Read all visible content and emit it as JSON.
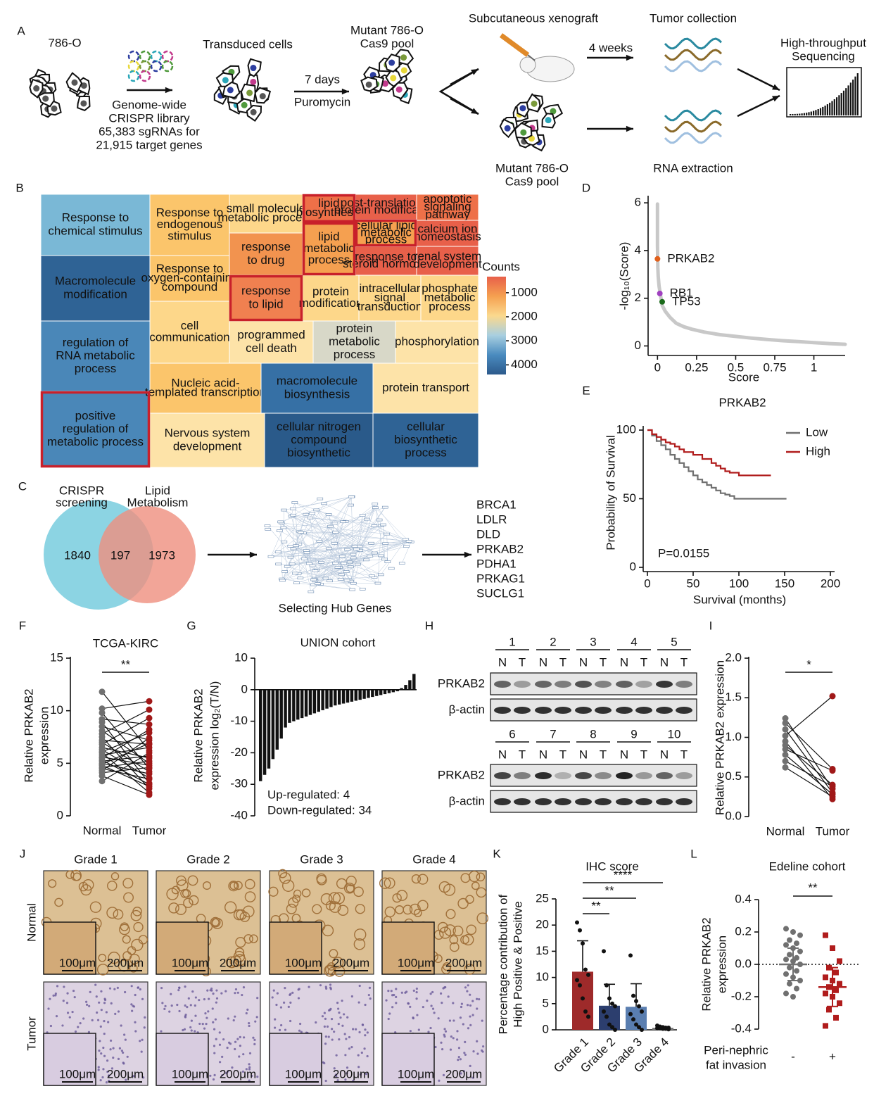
{
  "panel_labels": [
    "A",
    "B",
    "C",
    "D",
    "E",
    "F",
    "G",
    "H",
    "I",
    "J",
    "K",
    "L"
  ],
  "panel_a": {
    "cells_label": "786-O",
    "library": [
      "Genome-wide",
      "CRISPR library",
      "65,383 sgRNAs for",
      "21,915 target genes"
    ],
    "transduced": "Transduced cells",
    "days": "7 days",
    "drug": "Puromycin",
    "pool_top": [
      "Mutant 786-O",
      "Cas9 pool"
    ],
    "xenograft": "Subcutaneous xenograft",
    "weeks": "4 weeks",
    "tumor": "Tumor collection",
    "sequencing": [
      "High-throughput",
      "Sequencing"
    ],
    "pool_bottom": [
      "Mutant 786-O",
      "Cas9 pool"
    ],
    "rna": "RNA extraction"
  },
  "panel_b": {
    "highlight_color": "#c8202a",
    "tiles": [
      {
        "label": [
          "Response to",
          "chemical stimulus"
        ],
        "color": "#7ab8d6"
      },
      {
        "label": [
          "Macromolecule",
          "modification"
        ],
        "color": "#2f6395"
      },
      {
        "label": [
          "regulation of",
          "RNA metabolic",
          "process"
        ],
        "color": "#4a87b8"
      },
      {
        "label": [
          "positive",
          "regulation of",
          "metabolic process"
        ],
        "color": "#4a87b8",
        "highlight": true
      },
      {
        "label": [
          "Response to",
          "endogenous",
          "stimulus"
        ],
        "color": "#fbc56b"
      },
      {
        "label": [
          "Response to",
          "oxygen-containing",
          "compound"
        ],
        "color": "#fbc56b"
      },
      {
        "label": [
          "cell",
          "communication"
        ],
        "color": "#fdd78a"
      },
      {
        "label": [
          "Nucleic acid-",
          "templated transcription"
        ],
        "color": "#fbc56b"
      },
      {
        "label": [
          "Nervous system",
          "development"
        ],
        "color": "#fde3a8"
      },
      {
        "label": [
          "small molecule",
          "metabolic process"
        ],
        "color": "#fdd78a"
      },
      {
        "label": [
          "response",
          "to drug"
        ],
        "color": "#f2934f"
      },
      {
        "label": [
          "response",
          "to lipid"
        ],
        "color": "#f08050",
        "highlight": true
      },
      {
        "label": [
          "programmed",
          "cell death"
        ],
        "color": "#fde3a8"
      },
      {
        "label": [
          "lipid",
          "biosynthesis"
        ],
        "color": "#ee7048",
        "highlight": true
      },
      {
        "label": [
          "lipid",
          "metabolic",
          "process"
        ],
        "color": "#f5a050",
        "highlight": true
      },
      {
        "label": [
          "protein",
          "modification"
        ],
        "color": "#fdd78a"
      },
      {
        "label": [
          "post-translational",
          "protein modification"
        ],
        "color": "#e8604a"
      },
      {
        "label": [
          "cellular lipid",
          "metabolic",
          "process"
        ],
        "color": "#f5a050",
        "highlight": true
      },
      {
        "label": [
          "response to",
          "steroid hormone"
        ],
        "color": "#e8604a"
      },
      {
        "label": [
          "apoptotic",
          "signaling",
          "pathway"
        ],
        "color": "#ee7048"
      },
      {
        "label": [
          "calcium ion",
          "homeostasis"
        ],
        "color": "#e8604a"
      },
      {
        "label": [
          "renal system",
          "development"
        ],
        "color": "#e8604a"
      },
      {
        "label": [
          "intracellular",
          "signal",
          "transduction"
        ],
        "color": "#fdd78a"
      },
      {
        "label": [
          "phosphate",
          "metabolic",
          "process"
        ],
        "color": "#fdd78a"
      },
      {
        "label": [
          "protein",
          "metabolic",
          "process"
        ],
        "color": "#d8d8c8"
      },
      {
        "label": [
          "phosphorylation"
        ],
        "color": "#fde3a8"
      },
      {
        "label": [
          "macromolecule",
          "biosynthesis"
        ],
        "color": "#3670a5"
      },
      {
        "label": [
          "protein transport"
        ],
        "color": "#fde3a8"
      },
      {
        "label": [
          "cellular nitrogen",
          "compound",
          "biosynthetic"
        ],
        "color": "#2a5a8a"
      },
      {
        "label": [
          "cellular",
          "biosynthetic",
          "process"
        ],
        "color": "#2f6395"
      }
    ],
    "legend_title": "Counts",
    "colorbar": {
      "lim": [
        330,
        4400
      ],
      "ticks": [
        1000,
        2000,
        3000,
        4000
      ],
      "colors": [
        "#e8604a",
        "#f5a050",
        "#fbd98e",
        "#a8cfe0",
        "#4a8bbf",
        "#2c5a8c"
      ]
    }
  },
  "panel_c": {
    "sets": [
      [
        "CRISPR",
        "screening"
      ],
      [
        "Lipid",
        "Metabolism"
      ]
    ],
    "set_colors": [
      "#7fcfe0",
      "#ef8e7e"
    ],
    "counts": [
      1840,
      197,
      1973
    ],
    "network_label": "Selecting Hub Genes",
    "genes": [
      "BRCA1",
      "LDLR",
      "DLD",
      "PRKAB2",
      "PDHA1",
      "PRKAG1",
      "SUCLG1"
    ],
    "gene_colors": [
      "#111111",
      "#111111",
      "#111111",
      "#b01c1c",
      "#111111",
      "#111111",
      "#111111"
    ]
  },
  "panel_h": {
    "groups_top": [
      "1",
      "2",
      "3",
      "4",
      "5"
    ],
    "groups_bottom": [
      "6",
      "7",
      "8",
      "9",
      "10"
    ],
    "lanes": [
      "N",
      "T"
    ],
    "rows": [
      "PRKAB2",
      "β-actin"
    ]
  },
  "panel_j": {
    "grades": [
      "Grade 1",
      "Grade 2",
      "Grade 3",
      "Grade 4"
    ],
    "rows": [
      "Normal",
      "Tumor"
    ],
    "scale_inset": "100μm",
    "scale_main": "200μm"
  },
  "chart_data": [
    {
      "type": "scatter",
      "y_label": "-log₁₀(Score)",
      "x_label": "Score",
      "xlim": [
        -0.06,
        1.2
      ],
      "ylim": [
        -0.4,
        6.3
      ],
      "xticks": [
        0,
        0.25,
        0.5,
        0.75,
        1
      ],
      "yticks": [
        0,
        2,
        4,
        6
      ],
      "series": [
        {
          "color": "#c8c8c8",
          "x": [
            0,
            0,
            0,
            0,
            0.002,
            0.005,
            0.01,
            0.02,
            0.03,
            0.05,
            0.08,
            0.12,
            0.17,
            0.22,
            0.3,
            0.4,
            0.5,
            0.6,
            0.7,
            0.8,
            0.9,
            1.0,
            1.1,
            1.2
          ],
          "values": [
            5.95,
            5.2,
            4.6,
            4.2,
            3.3,
            2.9,
            2.5,
            2.1,
            1.7,
            1.45,
            1.2,
            0.95,
            0.8,
            0.7,
            0.58,
            0.47,
            0.4,
            0.33,
            0.27,
            0.22,
            0.18,
            0.14,
            0.1,
            0.07
          ]
        },
        {
          "name": "PRKAB2",
          "color": "#e0601c",
          "x": [
            0.0
          ],
          "values": [
            3.65
          ]
        },
        {
          "name": "RB1",
          "color": "#a040c0",
          "x": [
            0.015
          ],
          "values": [
            2.2
          ]
        },
        {
          "name": "TP53",
          "color": "#1a6a1a",
          "x": [
            0.03
          ],
          "values": [
            1.85
          ]
        }
      ]
    },
    {
      "type": "line",
      "title": "PRKAB2",
      "x_label": "Survival (months)",
      "y_label": "Probability of Survival",
      "xlim": [
        0,
        200
      ],
      "ylim": [
        0,
        100
      ],
      "xticks": [
        0,
        50,
        100,
        150,
        200
      ],
      "yticks": [
        0,
        50,
        100
      ],
      "annotation": "P=0.0155",
      "legend": "upper right",
      "series": [
        {
          "name": "Low",
          "color": "#707070",
          "x": [
            0,
            5,
            10,
            15,
            20,
            25,
            30,
            35,
            40,
            45,
            50,
            55,
            60,
            65,
            70,
            75,
            80,
            85,
            90,
            95,
            100,
            110,
            120,
            130,
            140,
            152
          ],
          "values": [
            100,
            96,
            92,
            89,
            86,
            82,
            79,
            76,
            73,
            70,
            67,
            64,
            62,
            60,
            58,
            56,
            54,
            53,
            52,
            50,
            50,
            50,
            50,
            50,
            50,
            50
          ]
        },
        {
          "name": "High",
          "color": "#b01c1c",
          "x": [
            0,
            5,
            10,
            15,
            20,
            25,
            30,
            35,
            40,
            50,
            60,
            70,
            75,
            80,
            85,
            90,
            100,
            110,
            120,
            135
          ],
          "values": [
            100,
            97,
            95,
            93,
            91,
            90,
            88,
            86,
            84,
            82,
            79,
            76,
            74,
            72,
            70,
            69,
            67,
            67,
            67,
            67
          ]
        }
      ]
    },
    {
      "type": "paired",
      "title": "TCGA-KIRC",
      "y_label": [
        "Relative PRKAB2",
        "expression"
      ],
      "categories": [
        "Normal",
        "Tumor"
      ],
      "ylim": [
        0,
        15
      ],
      "yticks": [
        0,
        5,
        10,
        15
      ],
      "significance": "**",
      "groups": [
        {
          "color": "#707070",
          "values": [
            11.8,
            10.2,
            9.8,
            9.2,
            8.9,
            8.5,
            8.1,
            7.8,
            7.5,
            7.2,
            7.0,
            6.8,
            6.5,
            6.3,
            6.1,
            6.0,
            5.8,
            5.6,
            5.5,
            5.3,
            5.2,
            5.0,
            4.9,
            4.8,
            4.6,
            4.5,
            4.3,
            4.1,
            3.8,
            3.3
          ]
        },
        {
          "color": "#a01818",
          "values": [
            6.2,
            10.9,
            4.5,
            8.7,
            3.1,
            7.2,
            5.0,
            10.1,
            2.6,
            6.8,
            4.2,
            9.3,
            5.5,
            3.6,
            7.9,
            2.2,
            6.5,
            4.8,
            8.2,
            3.0,
            5.7,
            4.0,
            6.9,
            2.8,
            5.2,
            3.5,
            7.4,
            4.6,
            2.0,
            6.0
          ]
        }
      ]
    },
    {
      "type": "bar",
      "title": "UNION cohort",
      "y_label": [
        "Relative PRKAB2",
        "expression log₂(T/N)"
      ],
      "ylim": [
        -40,
        10
      ],
      "yticks": [
        -40,
        -30,
        -20,
        -10,
        0,
        10
      ],
      "color": "#111111",
      "annotations": [
        "Up-regulated: 4",
        "Down-regulated: 34"
      ],
      "values": [
        -29,
        -27,
        -25,
        -22,
        -19,
        -15.5,
        -12,
        -10.5,
        -10,
        -9.5,
        -9,
        -8.5,
        -8,
        -7.5,
        -7,
        -6.5,
        -6,
        -5.5,
        -5,
        -4.7,
        -4.4,
        -4.1,
        -3.8,
        -3.5,
        -3.2,
        -2.9,
        -2.6,
        -2.3,
        -2,
        -1.7,
        -1.4,
        -1.1,
        -0.8,
        -0.5,
        0.5,
        1.5,
        3,
        5
      ]
    },
    {
      "type": "paired",
      "y_label": "Relative PRKAB2 expression",
      "categories": [
        "Normal",
        "Tumor"
      ],
      "ylim": [
        0,
        2
      ],
      "yticks": [
        {
          "value": 0,
          "label": "0.0"
        },
        {
          "value": 0.5,
          "label": "0.5"
        },
        {
          "value": 1,
          "label": "1.0"
        },
        {
          "value": 1.5,
          "label": "1.5"
        },
        {
          "value": 2,
          "label": "2.0"
        }
      ],
      "significance": "*",
      "groups": [
        {
          "color": "#707070",
          "values": [
            1.24,
            1.18,
            1.1,
            1.02,
            0.95,
            0.9,
            0.85,
            0.78,
            0.7,
            0.62
          ]
        },
        {
          "color": "#a01818",
          "values": [
            0.35,
            0.6,
            0.3,
            1.52,
            0.22,
            0.4,
            0.58,
            0.28,
            0.38,
            0.25
          ]
        }
      ]
    },
    {
      "type": "bar",
      "title": "IHC score",
      "y_label": [
        "Percentage contribution of",
        "High Positive & Positive"
      ],
      "categories": [
        "Grade 1",
        "Grade 2",
        "Grade 3",
        "Grade 4"
      ],
      "ylim": [
        0,
        25
      ],
      "yticks": [
        0,
        5,
        10,
        15,
        20,
        25
      ],
      "values": [
        11.1,
        4.6,
        4.4,
        0.4
      ],
      "errors": [
        5.9,
        4.1,
        4.4,
        0.2
      ],
      "colors": [
        "#9e2a2a",
        "#2c3e6e",
        "#5a7eb0",
        "#7a7a7a"
      ],
      "significance": [
        "**",
        "**",
        "****"
      ],
      "points": [
        [
          20.5,
          19,
          16.5,
          11.5,
          10.5,
          9.5,
          8.5,
          6,
          3.5,
          2.5
        ],
        [
          15,
          8.5,
          6,
          5,
          4.5,
          3.5,
          2.5,
          1,
          0.5,
          0
        ],
        [
          14.2,
          6.5,
          5.5,
          4.5,
          3.5,
          3,
          2,
          1,
          0.5,
          0
        ],
        [
          0.8,
          0.6,
          0.5,
          0.4,
          0.4,
          0.3,
          0.3,
          0.2,
          0.2,
          0.1
        ]
      ]
    },
    {
      "type": "strip",
      "title": "Edeline cohort",
      "y_label": [
        "Relative PRKAB2",
        "expression"
      ],
      "x_label": [
        "Peri-nephric",
        "fat invasion"
      ],
      "categories": [
        "-",
        "+"
      ],
      "ylim": [
        -0.4,
        0.4
      ],
      "yticks": [
        -0.4,
        -0.2,
        {
          "value": 0,
          "label": "0.0"
        },
        0.2,
        0.4
      ],
      "reference_line": 0,
      "significance": "**",
      "colors": [
        "#707070",
        "#b01c1c"
      ],
      "means": [
        0.0,
        -0.14
      ],
      "sds": [
        0.1,
        0.12
      ],
      "groups": [
        [
          0.22,
          0.2,
          0.18,
          0.15,
          0.13,
          0.12,
          0.1,
          0.08,
          0.06,
          0.04,
          0.03,
          0.02,
          0.0,
          -0.02,
          -0.04,
          -0.06,
          -0.08,
          -0.1,
          -0.12,
          -0.15,
          -0.18,
          -0.2
        ],
        [
          0.18,
          0.1,
          0.02,
          -0.02,
          -0.05,
          -0.08,
          -0.1,
          -0.12,
          -0.14,
          -0.16,
          -0.18,
          -0.2,
          -0.24,
          -0.28,
          -0.33,
          -0.38
        ]
      ]
    }
  ]
}
